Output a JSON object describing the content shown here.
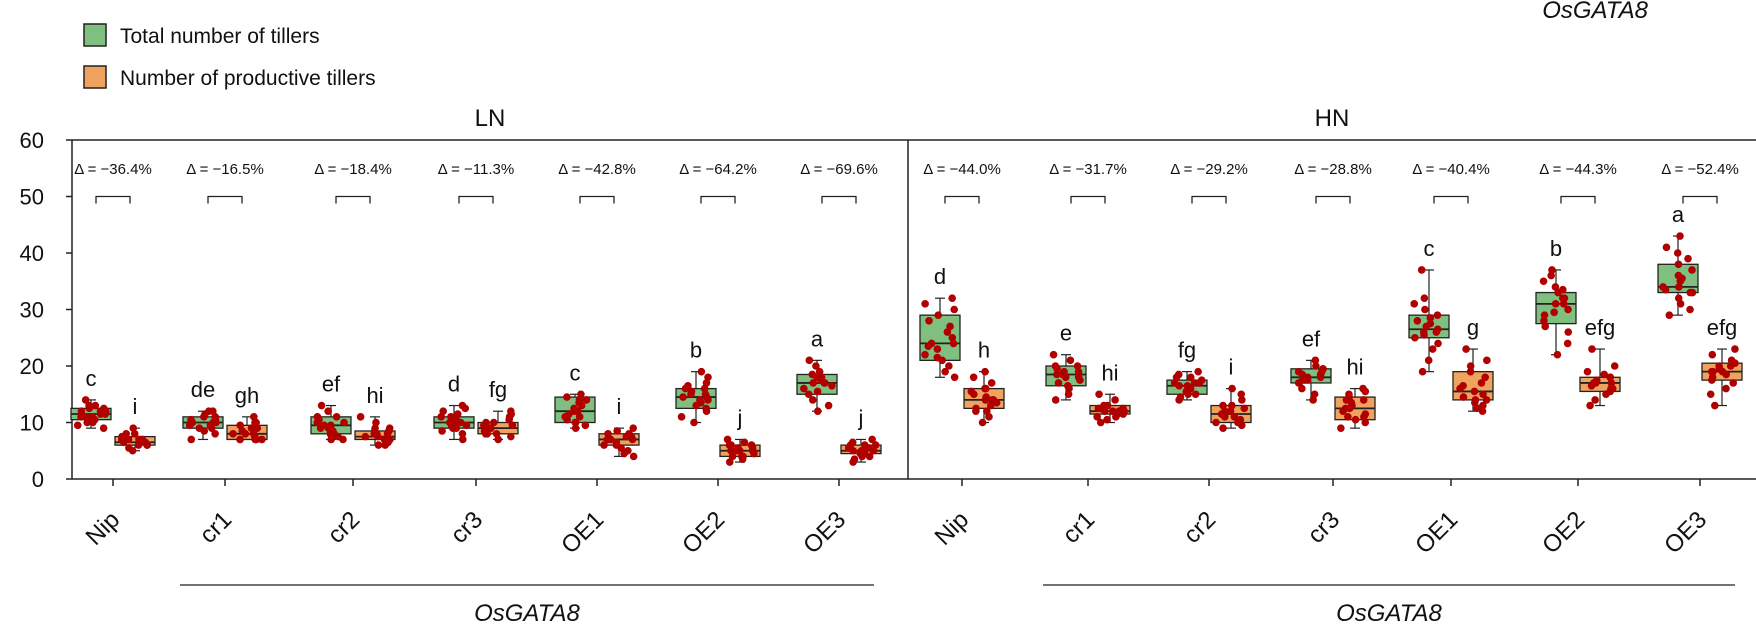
{
  "chart_data": {
    "type": "box",
    "ylim": [
      0,
      60
    ],
    "yticks": [
      0,
      10,
      20,
      30,
      40,
      50,
      60
    ],
    "colors": {
      "total": "#7fbf7f",
      "productive": "#f0a35e",
      "dots": "#b00000"
    },
    "legend": {
      "position": "top-left",
      "entries": [
        {
          "key": "total",
          "label": "Total number of tillers"
        },
        {
          "key": "productive",
          "label": "Number of productive tillers"
        }
      ]
    },
    "top_right_label": "OsGATA8",
    "panels": [
      {
        "name": "LN",
        "group_label": "OsGATA8",
        "group_covers": [
          "cr1",
          "cr2",
          "cr3",
          "OE1",
          "OE2",
          "OE3"
        ],
        "genotypes": [
          {
            "name": "Nip",
            "delta": "Δ = −36.4%",
            "total": {
              "q1": 10.5,
              "median": 11.5,
              "q3": 12.5,
              "min": 9,
              "max": 14,
              "letter": "c",
              "points": [
                9,
                9.5,
                10,
                10,
                10.5,
                10.5,
                11,
                11,
                11,
                11.5,
                11.5,
                12,
                12,
                12,
                12.5,
                12.5,
                13,
                13,
                14
              ]
            },
            "productive": {
              "q1": 6,
              "median": 6.5,
              "q3": 7.5,
              "min": 5,
              "max": 9,
              "letter": "i",
              "points": [
                5,
                5.5,
                6,
                6,
                6,
                6.5,
                6.5,
                6.5,
                7,
                7,
                7,
                7,
                7.5,
                7.5,
                8,
                8,
                9
              ]
            }
          },
          {
            "name": "cr1",
            "delta": "Δ = −16.5%",
            "total": {
              "q1": 9,
              "median": 10,
              "q3": 11,
              "min": 7,
              "max": 12,
              "letter": "de",
              "points": [
                7,
                8,
                8.5,
                9,
                9,
                9.5,
                9.5,
                10,
                10,
                10,
                10.5,
                10.5,
                11,
                11,
                11.5,
                12,
                12
              ]
            },
            "productive": {
              "q1": 7,
              "median": 8,
              "q3": 9.5,
              "min": 7,
              "max": 11,
              "letter": "gh",
              "points": [
                7,
                7,
                7,
                7,
                7,
                7.5,
                8,
                8,
                8,
                8.5,
                9,
                9,
                9,
                9.5,
                10,
                10,
                11
              ]
            }
          },
          {
            "name": "cr2",
            "delta": "Δ = −18.4%",
            "total": {
              "q1": 8,
              "median": 9.5,
              "q3": 11,
              "min": 7,
              "max": 13,
              "letter": "ef",
              "points": [
                7,
                7,
                7.5,
                8,
                8,
                8.5,
                9,
                9,
                9.5,
                9.5,
                10,
                10,
                10.5,
                11,
                11,
                12,
                13
              ]
            },
            "productive": {
              "q1": 7,
              "median": 7.5,
              "q3": 8.5,
              "min": 6,
              "max": 11,
              "letter": "hi",
              "points": [
                6,
                6,
                6.5,
                7,
                7,
                7,
                7,
                7.5,
                7.5,
                8,
                8,
                8,
                8.5,
                8.5,
                9,
                9,
                10,
                11
              ]
            }
          },
          {
            "name": "cr3",
            "delta": "Δ = −11.3%",
            "total": {
              "q1": 9,
              "median": 10,
              "q3": 11,
              "min": 7,
              "max": 13,
              "letter": "d",
              "points": [
                7,
                8,
                8.5,
                9,
                9,
                9.5,
                9.5,
                10,
                10,
                10,
                10.5,
                11,
                11,
                11.5,
                12,
                12.5,
                13
              ]
            },
            "productive": {
              "q1": 8,
              "median": 9,
              "q3": 10,
              "min": 7,
              "max": 12,
              "letter": "fg",
              "points": [
                7,
                7.5,
                8,
                8,
                8,
                8.5,
                9,
                9,
                9,
                9.5,
                9.5,
                10,
                10,
                10.5,
                11,
                11.5,
                12
              ]
            }
          },
          {
            "name": "OE1",
            "delta": "Δ = −42.8%",
            "total": {
              "q1": 10,
              "median": 12,
              "q3": 14.5,
              "min": 9,
              "max": 15,
              "letter": "c",
              "points": [
                9,
                9.5,
                10,
                10,
                10.5,
                11,
                11,
                11.5,
                12,
                12,
                12.5,
                13,
                13.5,
                14,
                14,
                14.5,
                15
              ]
            },
            "productive": {
              "q1": 6,
              "median": 7,
              "q3": 8,
              "min": 4,
              "max": 9,
              "letter": "i",
              "points": [
                4,
                4.5,
                5,
                5.5,
                6,
                6,
                6.5,
                7,
                7,
                7,
                7.5,
                7.5,
                8,
                8,
                8.5,
                9
              ]
            }
          },
          {
            "name": "OE2",
            "delta": "Δ = −64.2%",
            "total": {
              "q1": 12.5,
              "median": 14.5,
              "q3": 16,
              "min": 10,
              "max": 19,
              "letter": "b",
              "points": [
                10,
                11,
                12,
                12.5,
                13,
                13.5,
                14,
                14,
                14.5,
                14.5,
                15,
                15,
                15.5,
                16,
                16,
                16.5,
                17,
                18,
                19
              ]
            },
            "productive": {
              "q1": 4,
              "median": 5,
              "q3": 6,
              "min": 3,
              "max": 7,
              "letter": "j",
              "points": [
                3,
                3.5,
                4,
                4,
                4,
                4.5,
                5,
                5,
                5,
                5,
                5.5,
                5.5,
                6,
                6,
                6,
                6.5,
                7
              ]
            }
          },
          {
            "name": "OE3",
            "delta": "Δ = −69.6%",
            "total": {
              "q1": 15,
              "median": 17,
              "q3": 18.5,
              "min": 12,
              "max": 21,
              "letter": "a",
              "points": [
                12,
                13,
                14,
                15,
                15.5,
                16,
                16.5,
                17,
                17,
                17,
                17.5,
                18,
                18,
                18.5,
                19,
                20,
                21
              ]
            },
            "productive": {
              "q1": 4.5,
              "median": 5,
              "q3": 6,
              "min": 3,
              "max": 7,
              "letter": "j",
              "points": [
                3,
                3.5,
                4,
                4,
                4.5,
                4.5,
                5,
                5,
                5,
                5,
                5.5,
                5.5,
                6,
                6,
                6,
                6.5,
                7
              ]
            }
          }
        ]
      },
      {
        "name": "HN",
        "group_label": "OsGATA8",
        "group_covers": [
          "cr1",
          "cr2",
          "cr3",
          "OE1",
          "OE2",
          "OE3"
        ],
        "genotypes": [
          {
            "name": "Nip",
            "delta": "Δ = −44.0%",
            "total": {
              "q1": 21,
              "median": 24,
              "q3": 29,
              "min": 18,
              "max": 32,
              "letter": "d",
              "points": [
                18,
                19,
                20,
                21,
                21.5,
                22,
                23,
                23.5,
                24,
                24,
                25,
                26,
                27,
                28,
                29,
                30,
                31,
                32
              ]
            },
            "productive": {
              "q1": 12.5,
              "median": 14,
              "q3": 16,
              "min": 10,
              "max": 19,
              "letter": "h",
              "points": [
                10,
                11,
                12,
                12,
                12.5,
                13,
                13.5,
                14,
                14,
                14,
                14.5,
                15,
                15.5,
                16,
                16,
                17,
                18,
                19
              ]
            }
          },
          {
            "name": "cr1",
            "delta": "Δ = −31.7%",
            "total": {
              "q1": 16.5,
              "median": 18.5,
              "q3": 20,
              "min": 14,
              "max": 22,
              "letter": "e",
              "points": [
                14,
                15,
                16,
                16.5,
                17,
                17.5,
                18,
                18,
                18.5,
                18.5,
                19,
                19,
                19.5,
                20,
                20,
                21,
                22
              ]
            },
            "productive": {
              "q1": 11.5,
              "median": 12,
              "q3": 13,
              "min": 10,
              "max": 15,
              "letter": "hi",
              "points": [
                10,
                10.5,
                11,
                11,
                11.5,
                11.5,
                12,
                12,
                12,
                12,
                12.5,
                12.5,
                13,
                13,
                14,
                15
              ]
            }
          },
          {
            "name": "cr2",
            "delta": "Δ = −29.2%",
            "total": {
              "q1": 15,
              "median": 16.5,
              "q3": 17.5,
              "min": 14,
              "max": 19,
              "letter": "fg",
              "points": [
                14,
                14.5,
                15,
                15,
                15.5,
                16,
                16,
                16.5,
                16.5,
                17,
                17,
                17,
                17.5,
                18,
                18,
                18.5,
                19
              ]
            },
            "productive": {
              "q1": 10,
              "median": 11.5,
              "q3": 13,
              "min": 9,
              "max": 16,
              "letter": "i",
              "points": [
                9,
                9.5,
                10,
                10,
                10.5,
                11,
                11,
                11.5,
                11.5,
                12,
                12,
                12.5,
                13,
                13,
                14,
                15,
                16
              ]
            }
          },
          {
            "name": "cr3",
            "delta": "Δ = −28.8%",
            "total": {
              "q1": 17,
              "median": 18,
              "q3": 19.5,
              "min": 14,
              "max": 21,
              "letter": "ef",
              "points": [
                14,
                15,
                16,
                17,
                17,
                17.5,
                17.5,
                18,
                18,
                18,
                18.5,
                18.5,
                19,
                19,
                19.5,
                20,
                21
              ]
            },
            "productive": {
              "q1": 10.5,
              "median": 12.5,
              "q3": 14.5,
              "min": 9,
              "max": 16,
              "letter": "hi",
              "points": [
                9,
                10,
                10.5,
                11,
                11,
                11.5,
                12,
                12.5,
                12.5,
                13,
                13.5,
                14,
                14,
                14.5,
                15,
                15.5,
                16
              ]
            }
          },
          {
            "name": "OE1",
            "delta": "Δ = −40.4%",
            "total": {
              "q1": 25,
              "median": 26.5,
              "q3": 29,
              "min": 19,
              "max": 37,
              "letter": "c",
              "points": [
                19,
                21,
                23,
                24,
                25,
                25.5,
                26,
                26,
                26.5,
                27,
                27.5,
                28,
                28.5,
                29,
                30,
                31,
                32,
                37
              ]
            },
            "productive": {
              "q1": 14,
              "median": 15.5,
              "q3": 19,
              "min": 12,
              "max": 23,
              "letter": "g",
              "points": [
                12,
                12.5,
                13,
                13.5,
                14,
                14,
                14.5,
                15,
                15.5,
                16,
                16.5,
                17,
                18,
                19,
                20,
                21,
                23
              ]
            }
          },
          {
            "name": "OE2",
            "delta": "Δ = −44.3%",
            "total": {
              "q1": 27.5,
              "median": 31,
              "q3": 33,
              "min": 22,
              "max": 37,
              "letter": "b",
              "points": [
                22,
                24,
                26,
                27,
                28,
                29,
                29.5,
                30,
                31,
                31,
                32,
                32,
                33,
                33.5,
                34,
                35,
                36,
                37
              ]
            },
            "productive": {
              "q1": 15.5,
              "median": 17,
              "q3": 18,
              "min": 13,
              "max": 23,
              "letter": "efg",
              "points": [
                13,
                14,
                15,
                15.5,
                16,
                16,
                16.5,
                17,
                17,
                17,
                17.5,
                18,
                18,
                18.5,
                19,
                20,
                23
              ]
            }
          },
          {
            "name": "OE3",
            "delta": "Δ = −52.4%",
            "total": {
              "q1": 33,
              "median": 34,
              "q3": 38,
              "min": 29,
              "max": 43,
              "letter": "a",
              "points": [
                29,
                30,
                31,
                32,
                33,
                33,
                33.5,
                34,
                34,
                35,
                35.5,
                36,
                37,
                38,
                39,
                40,
                41,
                43
              ]
            },
            "productive": {
              "q1": 17.5,
              "median": 19,
              "q3": 20.5,
              "min": 13,
              "max": 23,
              "letter": "efg",
              "points": [
                13,
                15,
                16,
                17,
                17.5,
                18,
                18.5,
                19,
                19,
                19,
                19.5,
                20,
                20,
                20.5,
                21,
                22,
                23
              ]
            }
          }
        ]
      }
    ]
  }
}
